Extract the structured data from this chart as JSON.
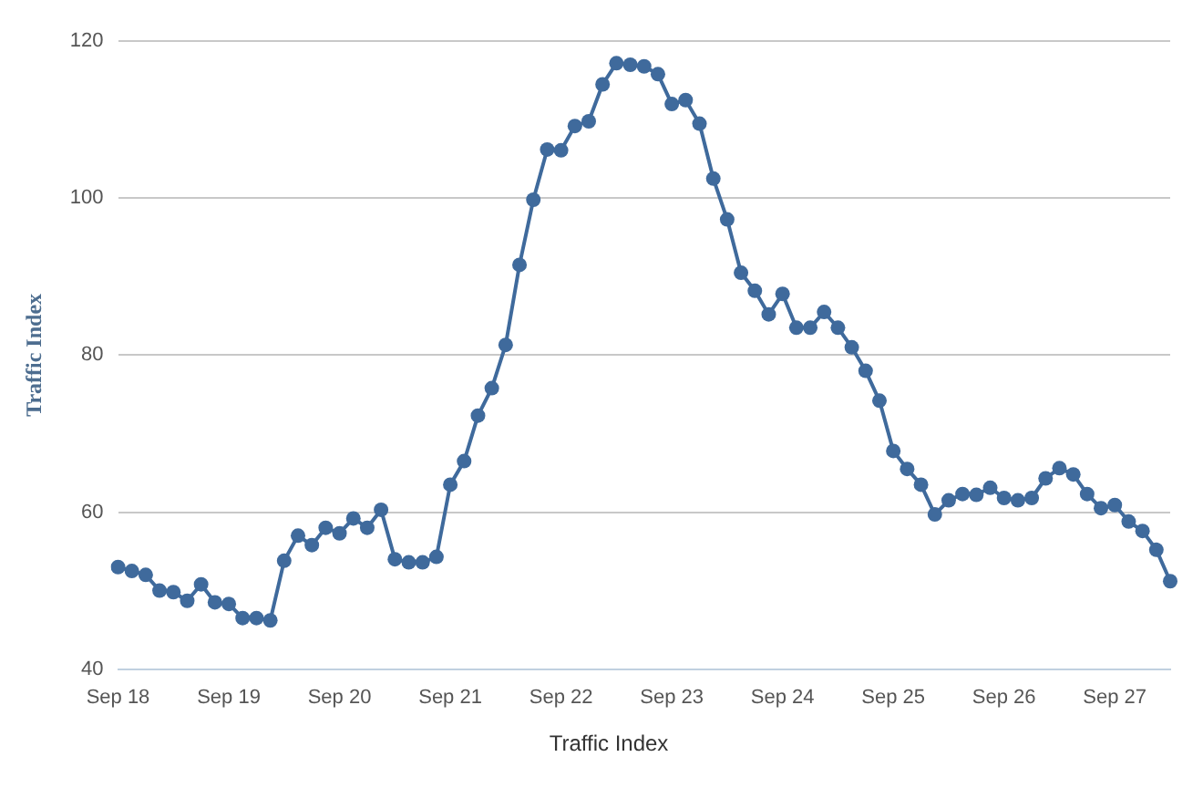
{
  "chart_data": {
    "type": "line",
    "ylabel": "Traffic Index",
    "categories": [
      "Sep 18",
      null,
      null,
      null,
      null,
      null,
      null,
      null,
      "Sep 19",
      null,
      null,
      null,
      null,
      null,
      null,
      null,
      "Sep 20",
      null,
      null,
      null,
      null,
      null,
      null,
      null,
      "Sep 21",
      null,
      null,
      null,
      null,
      null,
      null,
      null,
      "Sep 22",
      null,
      null,
      null,
      null,
      null,
      null,
      null,
      "Sep 23",
      null,
      null,
      null,
      null,
      null,
      null,
      null,
      "Sep 24",
      null,
      null,
      null,
      null,
      null,
      null,
      null,
      "Sep 25",
      null,
      null,
      null,
      null,
      null,
      null,
      null,
      "Sep 26",
      null,
      null,
      null,
      null,
      null,
      null,
      null,
      "Sep 27",
      null,
      null,
      null,
      null
    ],
    "series": [
      {
        "name": "Traffic Index",
        "color": "#3f6a9c",
        "values": [
          53,
          52.5,
          52,
          50,
          49.8,
          48.7,
          50.8,
          48.5,
          48.3,
          46.5,
          46.5,
          46.2,
          53.8,
          57,
          55.8,
          58,
          57.3,
          59.2,
          58,
          60.3,
          54,
          53.6,
          53.6,
          54.3,
          63.5,
          66.5,
          72.3,
          75.8,
          81.3,
          91.5,
          99.8,
          106.2,
          106.1,
          109.2,
          109.8,
          114.5,
          117.2,
          117,
          116.8,
          115.8,
          112,
          112.5,
          109.5,
          102.5,
          97.3,
          90.5,
          88.2,
          85.2,
          87.8,
          83.5,
          83.5,
          85.5,
          83.5,
          81,
          78,
          74.2,
          67.8,
          65.5,
          63.5,
          59.7,
          61.5,
          62.3,
          62.2,
          63.1,
          61.8,
          61.5,
          61.8,
          64.3,
          65.6,
          64.8,
          62.3,
          60.5,
          60.9,
          58.8,
          57.6,
          55.2,
          51.2
        ]
      }
    ],
    "ylim": [
      40,
      120
    ],
    "yticks": [
      40,
      60,
      80,
      100,
      120
    ],
    "grid": "y",
    "legend": "bottom",
    "marker": "circle",
    "line_style": "solid"
  }
}
